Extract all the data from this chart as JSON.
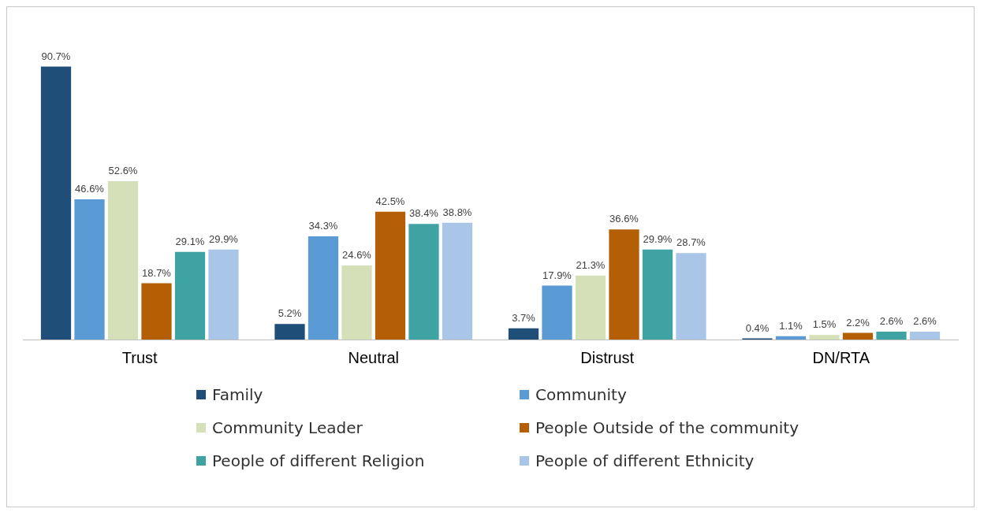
{
  "chart_data": {
    "type": "bar",
    "categories": [
      "Trust",
      "Neutral",
      "Distrust",
      "DN/RTA"
    ],
    "series": [
      {
        "name": "Family",
        "color": "#1f4e79",
        "values": [
          90.7,
          5.2,
          3.7,
          0.4
        ],
        "value_labels": [
          "90.7%",
          "5.2%",
          "3.7%",
          "0.4%"
        ]
      },
      {
        "name": "Community",
        "color": "#5b9bd5",
        "values": [
          46.6,
          34.3,
          17.9,
          1.1
        ],
        "value_labels": [
          "46.6%",
          "34.3%",
          "17.9%",
          "1.1%"
        ]
      },
      {
        "name": "Community Leader",
        "color": "#d6e0b8",
        "values": [
          52.6,
          24.6,
          21.3,
          1.5
        ],
        "value_labels": [
          "52.6%",
          "24.6%",
          "21.3%",
          "1.5%"
        ]
      },
      {
        "name": "People Outside of the community",
        "color": "#b45f06",
        "values": [
          18.7,
          42.5,
          36.6,
          2.2
        ],
        "value_labels": [
          "18.7%",
          "42.5%",
          "36.6%",
          "2.2%"
        ]
      },
      {
        "name": "People of different Religion",
        "color": "#3fa3a3",
        "values": [
          29.1,
          38.4,
          29.9,
          2.6
        ],
        "value_labels": [
          "29.1%",
          "38.4%",
          "29.9%",
          "2.6%"
        ]
      },
      {
        "name": "People of different Ethnicity",
        "color": "#a9c6e8",
        "values": [
          29.9,
          38.8,
          28.7,
          2.6
        ],
        "value_labels": [
          "29.9%",
          "38.8%",
          "28.7%",
          "2.6%"
        ]
      }
    ],
    "grid": false,
    "legend": "bottom"
  }
}
